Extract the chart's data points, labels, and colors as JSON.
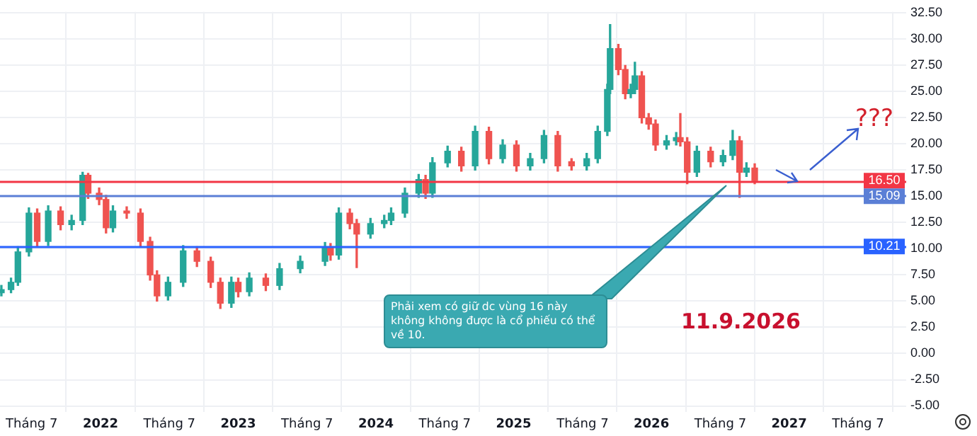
{
  "chart_data": {
    "type": "candlestick",
    "x": [
      2021.28,
      2021.35,
      2021.4,
      2021.48,
      2021.54,
      2021.62,
      2021.71,
      2021.79,
      2021.87,
      2021.91,
      2021.99,
      2022.04,
      2022.09,
      2022.19,
      2022.29,
      2022.36,
      2022.41,
      2022.49,
      2022.6,
      2022.7,
      2022.8,
      2022.87,
      2022.95,
      2023.0,
      2023.08,
      2023.2,
      2023.3,
      2023.45,
      2023.63,
      2023.67,
      2023.73,
      2023.81,
      2023.86,
      2023.96,
      2024.06,
      2024.11,
      2024.21,
      2024.31,
      2024.36,
      2024.41,
      2024.52,
      2024.62,
      2024.72,
      2024.82,
      2024.92,
      2025.02,
      2025.12,
      2025.22,
      2025.32,
      2025.42,
      2025.53,
      2025.61,
      2025.68,
      2025.7,
      2025.76,
      2025.81,
      2025.85,
      2025.88,
      2025.93,
      2025.98,
      2026.03,
      2026.11,
      2026.18,
      2026.21,
      2026.26,
      2026.33,
      2026.43,
      2026.52,
      2026.59,
      2026.64,
      2026.69,
      2026.75
    ],
    "ohlc": [
      [
        5.8,
        6.5,
        5.5,
        6.1
      ],
      [
        6.1,
        7.2,
        5.8,
        6.8
      ],
      [
        6.8,
        10.2,
        6.5,
        9.7
      ],
      [
        9.7,
        13.9,
        9.3,
        13.4
      ],
      [
        13.4,
        13.8,
        10.2,
        10.7
      ],
      [
        10.7,
        14.1,
        10.3,
        13.6
      ],
      [
        13.6,
        14.0,
        11.8,
        12.3
      ],
      [
        12.3,
        13.2,
        11.8,
        12.7
      ],
      [
        12.7,
        17.3,
        12.3,
        17.0
      ],
      [
        17.0,
        17.2,
        14.8,
        15.3
      ],
      [
        15.3,
        15.8,
        14.2,
        14.7
      ],
      [
        14.7,
        15.1,
        11.5,
        12.0
      ],
      [
        12.0,
        14.1,
        11.6,
        13.6
      ],
      [
        13.6,
        14.0,
        12.9,
        13.4
      ],
      [
        13.4,
        13.8,
        10.2,
        10.7
      ],
      [
        10.7,
        11.1,
        7.0,
        7.5
      ],
      [
        7.5,
        7.9,
        5.0,
        5.5
      ],
      [
        5.5,
        7.3,
        5.1,
        6.8
      ],
      [
        6.8,
        10.3,
        6.4,
        9.8
      ],
      [
        9.8,
        10.2,
        8.3,
        8.8
      ],
      [
        8.8,
        9.2,
        6.3,
        6.8
      ],
      [
        6.8,
        7.2,
        4.3,
        4.8
      ],
      [
        4.8,
        7.3,
        4.4,
        6.8
      ],
      [
        6.8,
        7.2,
        5.4,
        5.9
      ],
      [
        5.9,
        7.7,
        5.5,
        7.2
      ],
      [
        7.2,
        7.6,
        6.0,
        6.5
      ],
      [
        6.5,
        8.6,
        6.1,
        8.1
      ],
      [
        8.1,
        9.3,
        7.7,
        8.8
      ],
      [
        8.8,
        10.6,
        8.4,
        10.1
      ],
      [
        10.1,
        10.5,
        8.9,
        9.4
      ],
      [
        9.4,
        13.9,
        9.0,
        13.4
      ],
      [
        13.4,
        13.8,
        11.9,
        12.4
      ],
      [
        12.4,
        12.8,
        8.2,
        11.4
      ],
      [
        11.4,
        12.9,
        11.0,
        12.4
      ],
      [
        12.4,
        13.2,
        12.0,
        12.7
      ],
      [
        12.7,
        13.9,
        12.3,
        13.4
      ],
      [
        13.4,
        15.8,
        13.0,
        15.3
      ],
      [
        15.3,
        17.1,
        14.9,
        16.6
      ],
      [
        16.6,
        17.0,
        14.8,
        15.3
      ],
      [
        15.3,
        18.7,
        14.9,
        18.2
      ],
      [
        18.2,
        19.8,
        17.8,
        19.3
      ],
      [
        19.3,
        19.7,
        17.4,
        17.9
      ],
      [
        17.9,
        21.7,
        17.5,
        21.2
      ],
      [
        21.2,
        21.6,
        18.1,
        18.6
      ],
      [
        18.6,
        20.4,
        18.2,
        19.9
      ],
      [
        19.9,
        20.3,
        17.4,
        17.9
      ],
      [
        17.9,
        19.1,
        17.5,
        18.6
      ],
      [
        18.6,
        21.3,
        18.2,
        20.8
      ],
      [
        20.8,
        21.2,
        17.4,
        17.9
      ],
      [
        18.3,
        18.6,
        17.5,
        17.9
      ],
      [
        17.9,
        19.1,
        17.5,
        18.6
      ],
      [
        18.6,
        21.7,
        18.2,
        21.2
      ],
      [
        21.2,
        25.7,
        20.8,
        25.2
      ],
      [
        25.2,
        31.4,
        24.8,
        29.1
      ],
      [
        29.1,
        29.5,
        26.6,
        27.1
      ],
      [
        27.1,
        27.5,
        24.3,
        24.8
      ],
      [
        24.8,
        25.7,
        24.4,
        25.2
      ],
      [
        25.2,
        27.8,
        24.8,
        26.5
      ],
      [
        26.5,
        26.9,
        22.0,
        22.5
      ],
      [
        22.5,
        22.9,
        21.4,
        21.9
      ],
      [
        21.9,
        22.3,
        19.4,
        19.9
      ],
      [
        19.9,
        20.8,
        19.5,
        20.3
      ],
      [
        20.3,
        21.1,
        19.9,
        20.6
      ],
      [
        20.6,
        22.9,
        19.8,
        20.2
      ],
      [
        20.2,
        20.6,
        16.2,
        17.3
      ],
      [
        17.3,
        19.8,
        16.9,
        19.3
      ],
      [
        19.3,
        19.7,
        17.8,
        18.3
      ],
      [
        18.3,
        19.4,
        17.9,
        18.9
      ],
      [
        18.9,
        21.3,
        18.5,
        20.3
      ],
      [
        20.3,
        20.7,
        14.9,
        17.3
      ],
      [
        17.3,
        18.2,
        16.9,
        17.7
      ],
      [
        17.7,
        18.1,
        16.2,
        16.5
      ]
    ],
    "colors": [
      "#26a69a",
      "#26a69a",
      "#26a69a",
      "#26a69a",
      "#ef5350",
      "#26a69a",
      "#ef5350",
      "#26a69a",
      "#26a69a",
      "#ef5350",
      "#ef5350",
      "#ef5350",
      "#26a69a",
      "#ef5350",
      "#ef5350",
      "#ef5350",
      "#ef5350",
      "#26a69a",
      "#26a69a",
      "#ef5350",
      "#ef5350",
      "#ef5350",
      "#26a69a",
      "#ef5350",
      "#26a69a",
      "#ef5350",
      "#26a69a",
      "#26a69a",
      "#26a69a",
      "#ef5350",
      "#26a69a",
      "#ef5350",
      "#ef5350",
      "#26a69a",
      "#26a69a",
      "#26a69a",
      "#26a69a",
      "#26a69a",
      "#ef5350",
      "#26a69a",
      "#26a69a",
      "#ef5350",
      "#26a69a",
      "#ef5350",
      "#26a69a",
      "#ef5350",
      "#26a69a",
      "#26a69a",
      "#ef5350",
      "#ef5350",
      "#26a69a",
      "#26a69a",
      "#26a69a",
      "#26a69a",
      "#ef5350",
      "#ef5350",
      "#26a69a",
      "#26a69a",
      "#ef5350",
      "#ef5350",
      "#ef5350",
      "#26a69a",
      "#26a69a",
      "#ef5350",
      "#ef5350",
      "#26a69a",
      "#ef5350",
      "#26a69a",
      "#26a69a",
      "#ef5350",
      "#26a69a",
      "#ef5350"
    ],
    "xlim": [
      2021.27,
      2027.85
    ],
    "xticks": [
      {
        "value": 2021.5,
        "label": "Tháng 7"
      },
      2022,
      {
        "value": 2022.5,
        "label": "Tháng 7"
      },
      2023,
      {
        "value": 2023.5,
        "label": "Tháng 7"
      },
      2024,
      {
        "value": 2024.5,
        "label": "Tháng 7"
      },
      2025,
      {
        "value": 2025.5,
        "label": "Tháng 7"
      },
      2026,
      {
        "value": 2026.5,
        "label": "Tháng 7"
      },
      2027,
      {
        "value": 2027.5,
        "label": "Tháng 7"
      }
    ],
    "ylim": [
      -5.6,
      32.6
    ],
    "yticks": [
      {
        "value": -5,
        "label": "-5.00"
      },
      {
        "value": -2.5,
        "label": "-2.50"
      },
      {
        "value": 0,
        "label": "0.00"
      },
      {
        "value": 2.5,
        "label": "2.50"
      },
      {
        "value": 5,
        "label": "5.00"
      },
      {
        "value": 7.5,
        "label": "7.50"
      },
      {
        "value": 10,
        "label": "10.00"
      },
      {
        "value": 12.5,
        "label": "12.50"
      },
      {
        "value": 15,
        "label": "15.00"
      },
      {
        "value": 17.5,
        "label": "17.50"
      },
      {
        "value": 20,
        "label": "20.00"
      },
      {
        "value": 22.5,
        "label": "22.50"
      },
      {
        "value": 25,
        "label": "25.00"
      },
      {
        "value": 27.5,
        "label": "27.50"
      },
      {
        "value": 30,
        "label": "30.00"
      },
      {
        "value": 32.5,
        "label": "32.50"
      }
    ],
    "ref_lines": [
      {
        "axis": "y",
        "value": 16.5,
        "label": "16.50",
        "color": "#f23645"
      },
      {
        "axis": "y",
        "value": 15.09,
        "label": "15.09",
        "color": "#5b7fd6"
      },
      {
        "axis": "y",
        "value": 10.21,
        "label": "10.21",
        "color": "#2962ff"
      }
    ],
    "annotations": [
      "Phải xem có giữ dc vùng 16 này không không được là cổ phiếu có thể về 10.",
      "???",
      "11.9.2026"
    ],
    "grid": true,
    "legend": false
  }
}
